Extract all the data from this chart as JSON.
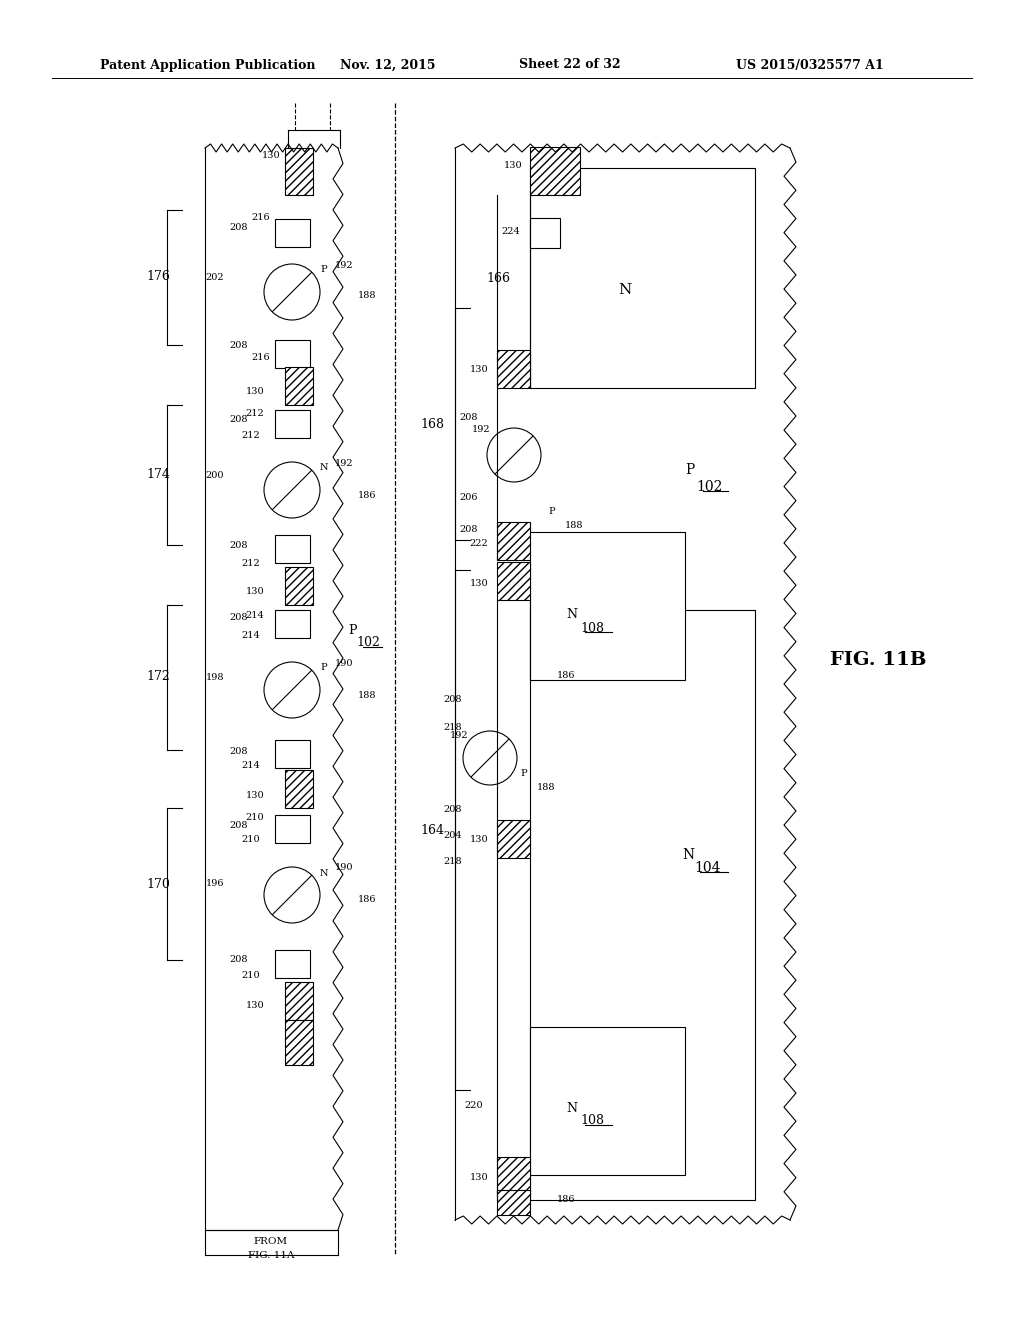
{
  "bg_color": "#ffffff",
  "line_color": "#000000",
  "header": {
    "title": "Patent Application Publication",
    "date": "Nov. 12, 2015",
    "sheet": "Sheet 22 of 32",
    "patent": "US 2015/0325577 A1"
  },
  "fig_label": "FIG. 11B"
}
